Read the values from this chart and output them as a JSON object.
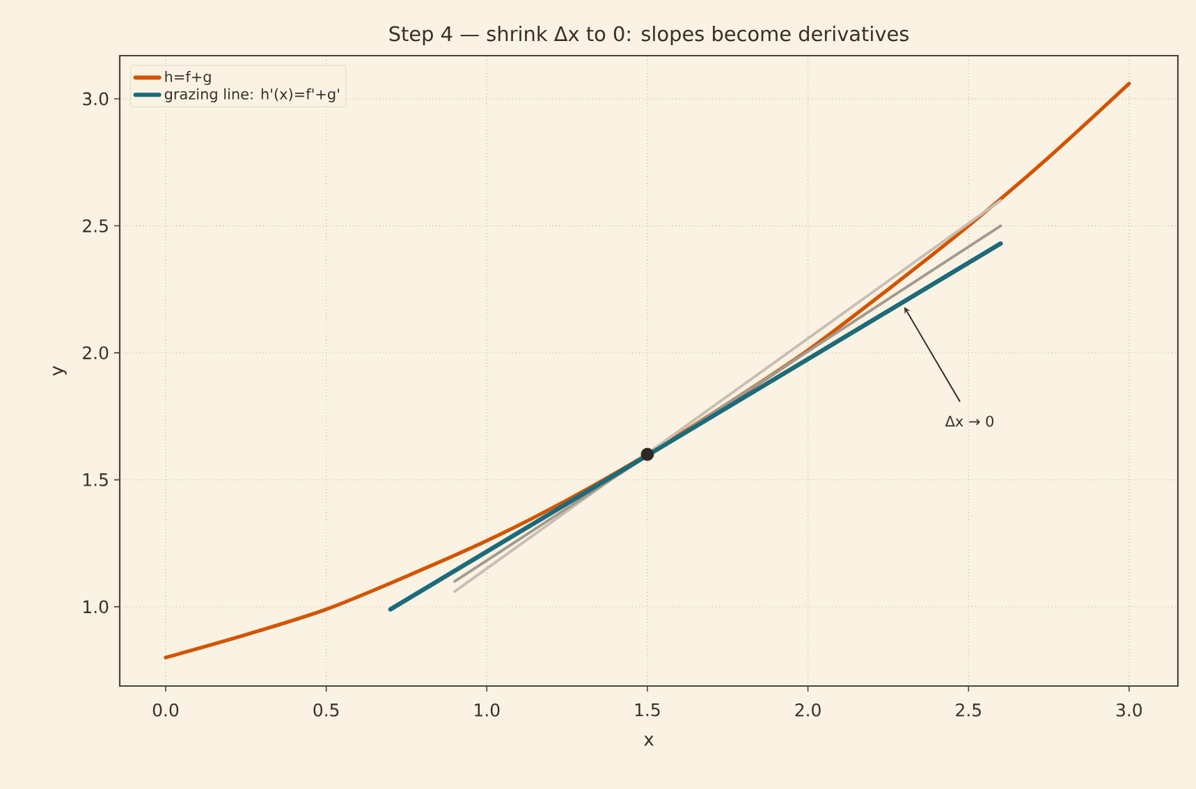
{
  "chart_data": {
    "type": "line",
    "title": "Step 4 — shrink Δx to 0: slopes become derivatives",
    "xlabel": "x",
    "ylabel": "y",
    "series": [
      {
        "name": "h=f+g",
        "color": "#d35400",
        "x": [
          0,
          0.25,
          0.5,
          0.75,
          1.0,
          1.25,
          1.5,
          1.75,
          2.0,
          2.25,
          2.5,
          2.75,
          3.0
        ],
        "values": [
          0.8,
          0.89,
          0.99,
          1.12,
          1.26,
          1.42,
          1.6,
          1.8,
          2.01,
          2.25,
          2.5,
          2.77,
          3.06
        ]
      },
      {
        "color": "#c9beb1",
        "x": [
          0.9,
          2.6
        ],
        "values": [
          1.06,
          2.6
        ]
      },
      {
        "color": "#a39a90",
        "x": [
          0.9,
          2.6
        ],
        "values": [
          1.1,
          2.5
        ]
      },
      {
        "name": "grazing line: h'(x)=f'+g'",
        "color": "#1c6b7a",
        "x": [
          0.7,
          2.6
        ],
        "values": [
          0.99,
          2.43
        ]
      },
      {
        "type": "scatter",
        "color": "#2e2926",
        "x": [
          1.5
        ],
        "values": [
          1.6
        ]
      }
    ],
    "annotations": [
      {
        "text": "Δx → 0",
        "x": 2.3,
        "y": 2.18
      }
    ],
    "xlim": [
      -0.143,
      3.152
    ],
    "ylim": [
      0.688,
      3.17
    ],
    "xticks": [
      {
        "value": 0,
        "label": "0.0"
      },
      {
        "value": 0.5,
        "label": "0.5"
      },
      {
        "value": 1,
        "label": "1.0"
      },
      {
        "value": 1.5,
        "label": "1.5"
      },
      {
        "value": 2,
        "label": "2.0"
      },
      {
        "value": 2.5,
        "label": "2.5"
      },
      {
        "value": 3,
        "label": "3.0"
      }
    ],
    "yticks": [
      {
        "value": 1,
        "label": "1.0"
      },
      {
        "value": 1.5,
        "label": "1.5"
      },
      {
        "value": 2,
        "label": "2.0"
      },
      {
        "value": 2.5,
        "label": "2.5"
      },
      {
        "value": 3,
        "label": "3.0"
      }
    ],
    "grid": true,
    "legend": "top left"
  }
}
